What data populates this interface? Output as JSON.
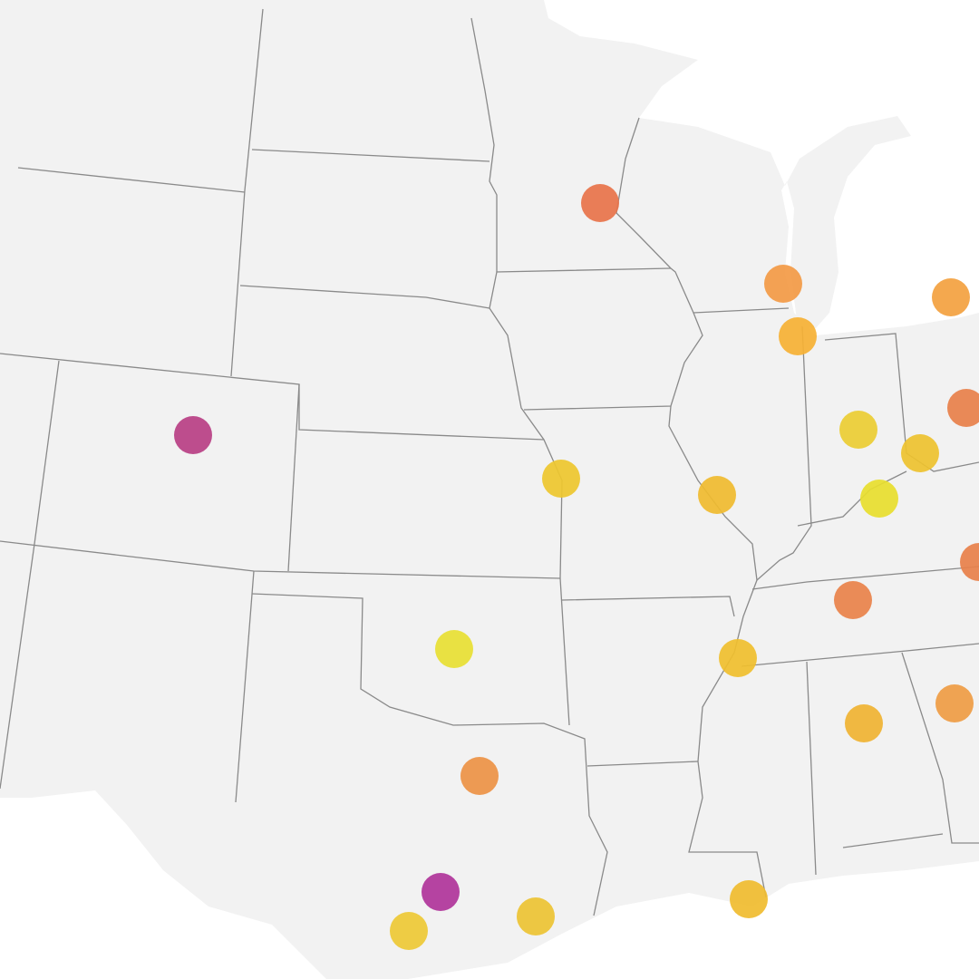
{
  "map": {
    "markers": [
      {
        "color": "#e8734a"
      },
      {
        "color": "#f39a45"
      },
      {
        "color": "#f6b134"
      },
      {
        "color": "#f3a13f"
      },
      {
        "color": "#b83f84"
      },
      {
        "color": "#eec72e"
      },
      {
        "color": "#f0bb2f"
      },
      {
        "color": "#eccd33"
      },
      {
        "color": "#eec22f"
      },
      {
        "color": "#e8de2e"
      },
      {
        "color": "#e8804a"
      },
      {
        "color": "#e8e033"
      },
      {
        "color": "#e9824a"
      },
      {
        "color": "#f0bf2e"
      },
      {
        "color": "#f0b332"
      },
      {
        "color": "#ef9c44"
      },
      {
        "color": "#ed9245"
      },
      {
        "color": "#b0349a"
      },
      {
        "color": "#eec935"
      },
      {
        "color": "#edc333"
      },
      {
        "color": "#f0bc2f"
      },
      {
        "color": "#e8804a"
      }
    ]
  }
}
